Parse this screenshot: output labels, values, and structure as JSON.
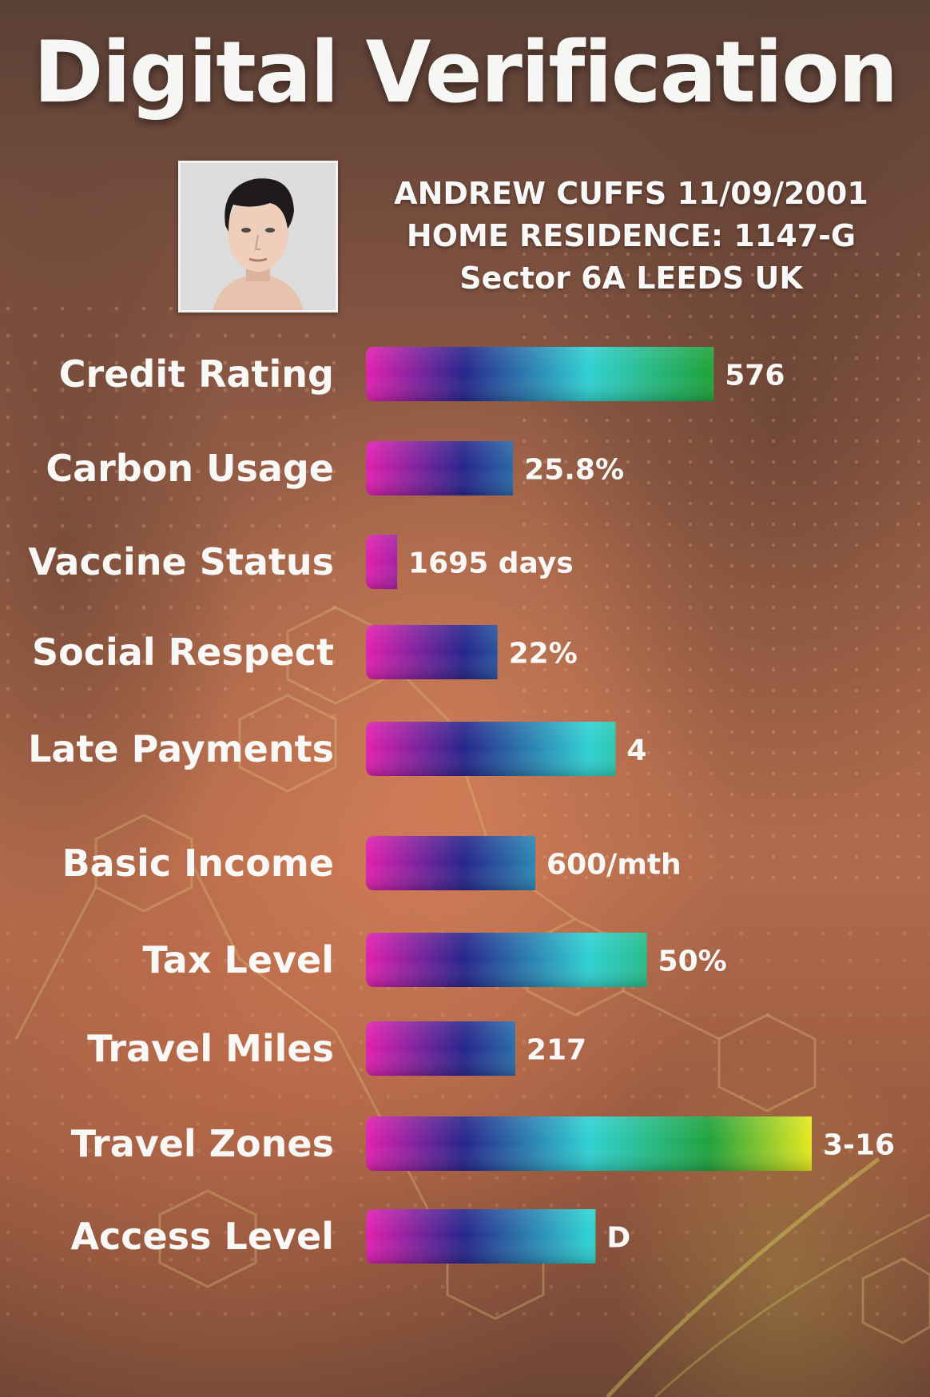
{
  "title": "Digital Verification",
  "identity": {
    "line1": "ANDREW CUFFS  11/09/2001",
    "line2": "HOME RESIDENCE: 1147-G",
    "line3": "Sector 6A LEEDS UK"
  },
  "chart_data": {
    "type": "bar",
    "orientation": "horizontal",
    "title": "",
    "xlabel": "",
    "ylabel": "",
    "grid": false,
    "legend": "none",
    "categories": [
      "Credit Rating",
      "Carbon Usage",
      "Vaccine Status",
      "Social Respect",
      "Late Payments",
      "Basic Income",
      "Tax Level",
      "Travel Miles",
      "Travel Zones",
      "Access Level"
    ],
    "value_labels": [
      "576",
      "25.8%",
      "1695 days",
      "22%",
      "4",
      "600/mth",
      "50%",
      "217",
      "3-16",
      "D"
    ],
    "values": [
      0.78,
      0.33,
      0.07,
      0.295,
      0.56,
      0.38,
      0.63,
      0.335,
      1.0,
      0.515
    ],
    "xlim": [
      0,
      1
    ],
    "gradient_colors": [
      "#e21fb0",
      "#26268c",
      "#2fd1d2",
      "#1fa23c",
      "#e6e81e"
    ]
  }
}
